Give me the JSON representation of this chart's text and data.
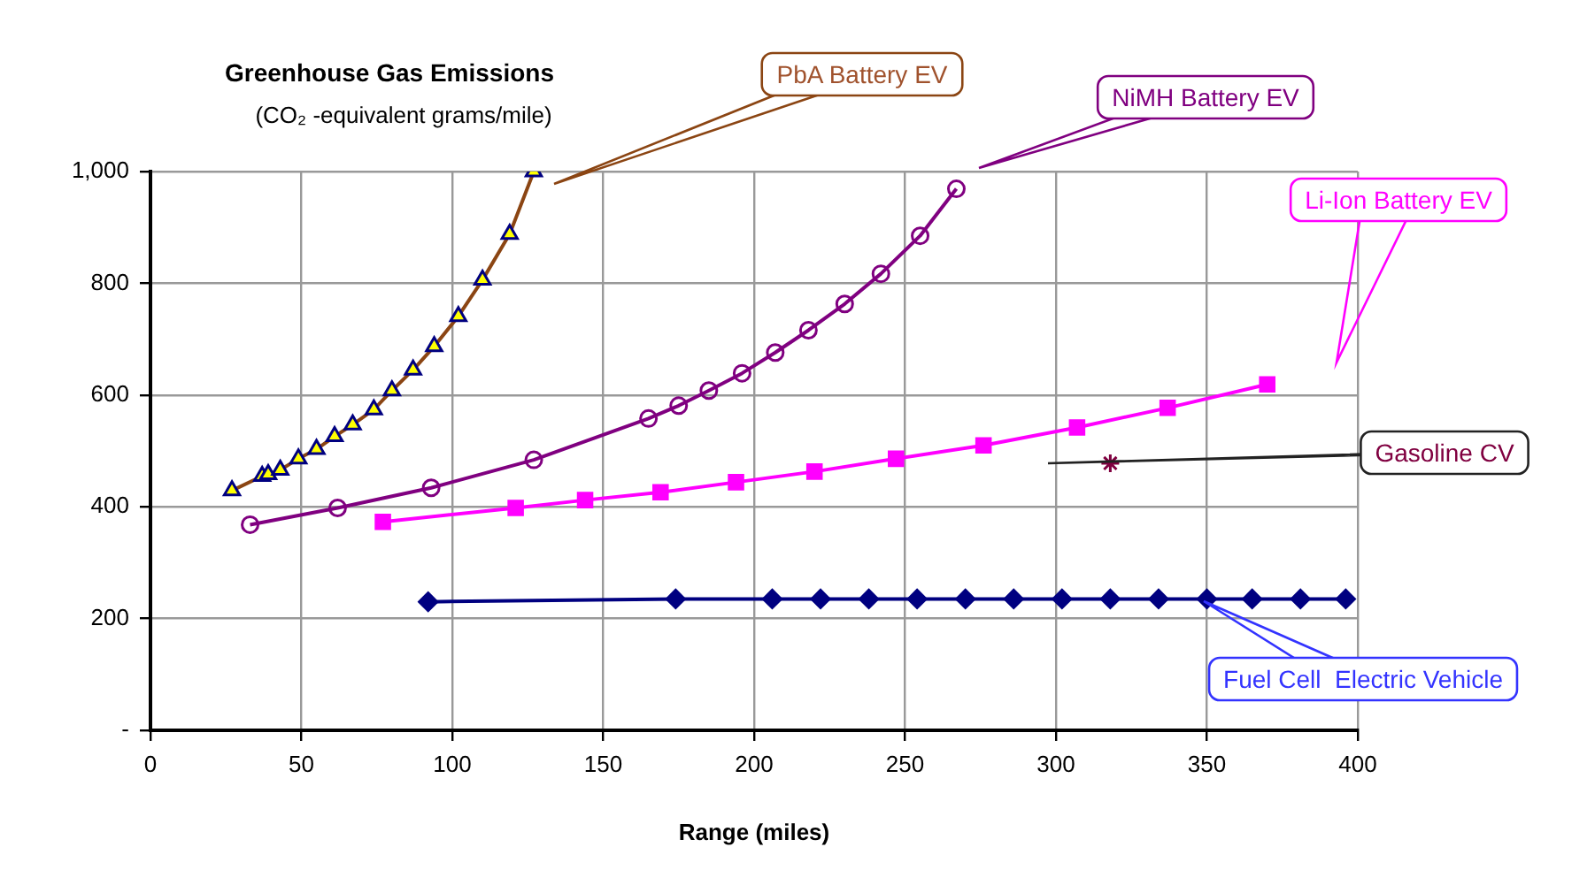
{
  "chart_data": {
    "type": "line",
    "title": "Greenhouse Gas Emissions",
    "subtitle": "(CO₂ -equivalent grams/mile)",
    "xlabel": "Range (miles)",
    "xlim": [
      0,
      400
    ],
    "xticks": [
      0,
      50,
      100,
      150,
      200,
      250,
      300,
      350,
      400
    ],
    "ylim": [
      0,
      1000
    ],
    "yticks": [
      {
        "value": 0,
        "label": "-"
      },
      200,
      400,
      600,
      800,
      {
        "value": 1000,
        "label": "1,000"
      }
    ],
    "grid": true,
    "legend": false,
    "series": [
      {
        "name": "PbA Battery EV",
        "color": "#8b4513",
        "marker": "triangle",
        "x": [
          27,
          37,
          39,
          43,
          49,
          55,
          61,
          67,
          74,
          80,
          87,
          94,
          102,
          110,
          119,
          127
        ],
        "values": [
          429,
          455,
          458,
          466,
          486,
          503,
          526,
          547,
          574,
          608,
          645,
          687,
          741,
          806,
          888,
          1000
        ]
      },
      {
        "name": "NiMH Battery EV",
        "color": "#800080",
        "marker": "circle",
        "x": [
          33,
          62,
          93,
          127,
          165,
          175,
          185,
          196,
          207,
          218,
          230,
          242,
          255,
          267
        ],
        "values": [
          368,
          398,
          434,
          484,
          558,
          581,
          608,
          639,
          676,
          716,
          763,
          817,
          885,
          969
        ]
      },
      {
        "name": "Li-Ion Battery EV",
        "color": "#ff00ff",
        "marker": "square",
        "x": [
          77,
          121,
          144,
          169,
          194,
          220,
          247,
          276,
          307,
          337,
          370
        ],
        "values": [
          373,
          398,
          412,
          426,
          444,
          463,
          486,
          510,
          542,
          577,
          619
        ]
      },
      {
        "name": "Gasoline CV",
        "type": "scatter",
        "color": "#800040",
        "marker": "cross",
        "x": [
          318
        ],
        "values": [
          478
        ]
      },
      {
        "name": "Fuel Cell  Electric Vehicle",
        "color": "#000080",
        "marker": "diamond",
        "x": [
          92,
          174,
          206,
          222,
          238,
          254,
          270,
          286,
          302,
          318,
          334,
          350,
          365,
          381,
          396
        ],
        "values": [
          230,
          235,
          235,
          235,
          235,
          235,
          235,
          235,
          235,
          235,
          235,
          235,
          235,
          235,
          235
        ]
      }
    ]
  }
}
